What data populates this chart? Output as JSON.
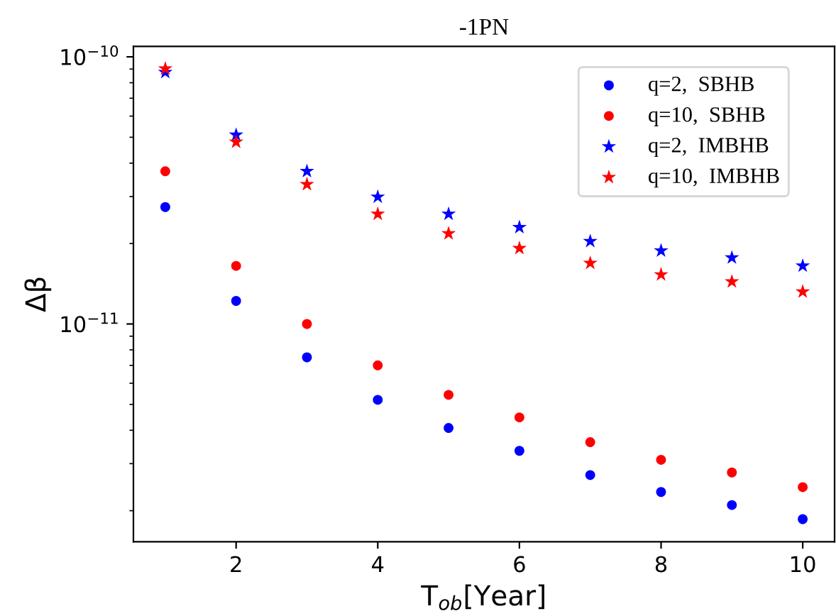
{
  "chart_data": {
    "type": "scatter",
    "title": "-1PN",
    "xlabel": "T$_{ob}$[Year]",
    "ylabel": "Δβ",
    "x": [
      1,
      2,
      3,
      4,
      5,
      6,
      7,
      8,
      9,
      10
    ],
    "series": [
      {
        "name": "q=2,  SBHB",
        "color": "#0000ff",
        "marker": "circle",
        "values": [
          2.74e-11,
          1.22e-11,
          7.5e-12,
          5.2e-12,
          4.08e-12,
          3.35e-12,
          2.72e-12,
          2.35e-12,
          2.1e-12,
          1.86e-12
        ]
      },
      {
        "name": "q=10,  SBHB",
        "color": "#ff0000",
        "marker": "circle",
        "values": [
          3.73e-11,
          1.65e-11,
          1e-11,
          7e-12,
          5.43e-12,
          4.47e-12,
          3.61e-12,
          3.1e-12,
          2.78e-12,
          2.45e-12
        ]
      },
      {
        "name": "q=2,  IMBHB",
        "color": "#0000ff",
        "marker": "star",
        "values": [
          8.75e-11,
          5.1e-11,
          3.73e-11,
          2.99e-11,
          2.58e-11,
          2.3e-11,
          2.04e-11,
          1.88e-11,
          1.77e-11,
          1.65e-11
        ]
      },
      {
        "name": "q=10,  IMBHB",
        "color": "#ff0000",
        "marker": "star",
        "values": [
          9.03e-11,
          4.8e-11,
          3.33e-11,
          2.58e-11,
          2.18e-11,
          1.92e-11,
          1.69e-11,
          1.53e-11,
          1.44e-11,
          1.32e-11
        ]
      }
    ],
    "log": "y",
    "xlim": [
      0.55,
      10.45
    ],
    "ylim": [
      1.53e-12,
      1.094e-10
    ],
    "xticks": [
      2,
      4,
      6,
      8,
      10
    ],
    "yticks": [
      {
        "value": 1e-11,
        "label": "10$^{−11}$"
      },
      {
        "value": 1e-10,
        "label": "10$^{−10}$"
      },
      {
        "value": 2e-12,
        "label": null
      },
      {
        "value": 3e-12,
        "label": null
      },
      {
        "value": 4e-12,
        "label": null
      },
      {
        "value": 5e-12,
        "label": null
      },
      {
        "value": 6e-12,
        "label": null
      },
      {
        "value": 7e-12,
        "label": null
      },
      {
        "value": 8e-12,
        "label": null
      },
      {
        "value": 9e-12,
        "label": null
      },
      {
        "value": 2e-11,
        "label": null
      },
      {
        "value": 3e-11,
        "label": null
      },
      {
        "value": 4e-11,
        "label": null
      },
      {
        "value": 5e-11,
        "label": null
      },
      {
        "value": 6e-11,
        "label": null
      },
      {
        "value": 7e-11,
        "label": null
      },
      {
        "value": 8e-11,
        "label": null
      },
      {
        "value": 9e-11,
        "label": null
      }
    ],
    "grid": false,
    "legend": "top right"
  }
}
